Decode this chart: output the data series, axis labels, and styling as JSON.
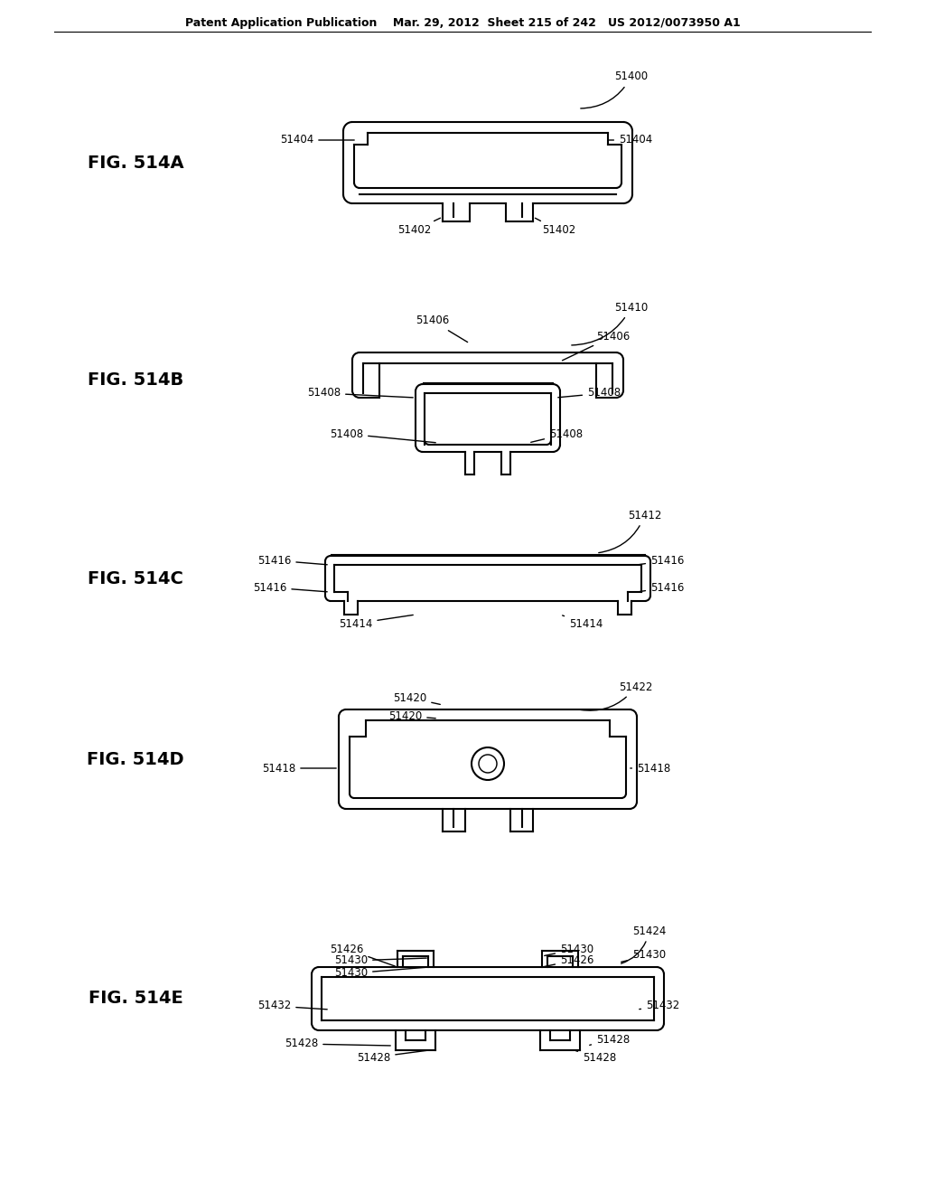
{
  "title_line": "Patent Application Publication    Mar. 29, 2012  Sheet 215 of 242   US 2012/0073950 A1",
  "background": "#ffffff",
  "line_color": "#000000",
  "figures": [
    {
      "name": "FIG. 514A",
      "labels": [
        "51400",
        "51404",
        "51404",
        "51402",
        "51402"
      ]
    },
    {
      "name": "FIG. 514B",
      "labels": [
        "51410",
        "51406",
        "51406",
        "51408",
        "51408",
        "51408",
        "51408"
      ]
    },
    {
      "name": "FIG. 514C",
      "labels": [
        "51412",
        "51416",
        "51416",
        "51416",
        "51416",
        "51414",
        "51414"
      ]
    },
    {
      "name": "FIG. 514D",
      "labels": [
        "51422",
        "51420",
        "51420",
        "51418",
        "51418"
      ]
    },
    {
      "name": "FIG. 514E",
      "labels": [
        "51424",
        "51426",
        "51430",
        "51430",
        "51426",
        "51430",
        "51430",
        "51432",
        "51432",
        "51428",
        "51428",
        "51428"
      ]
    }
  ]
}
